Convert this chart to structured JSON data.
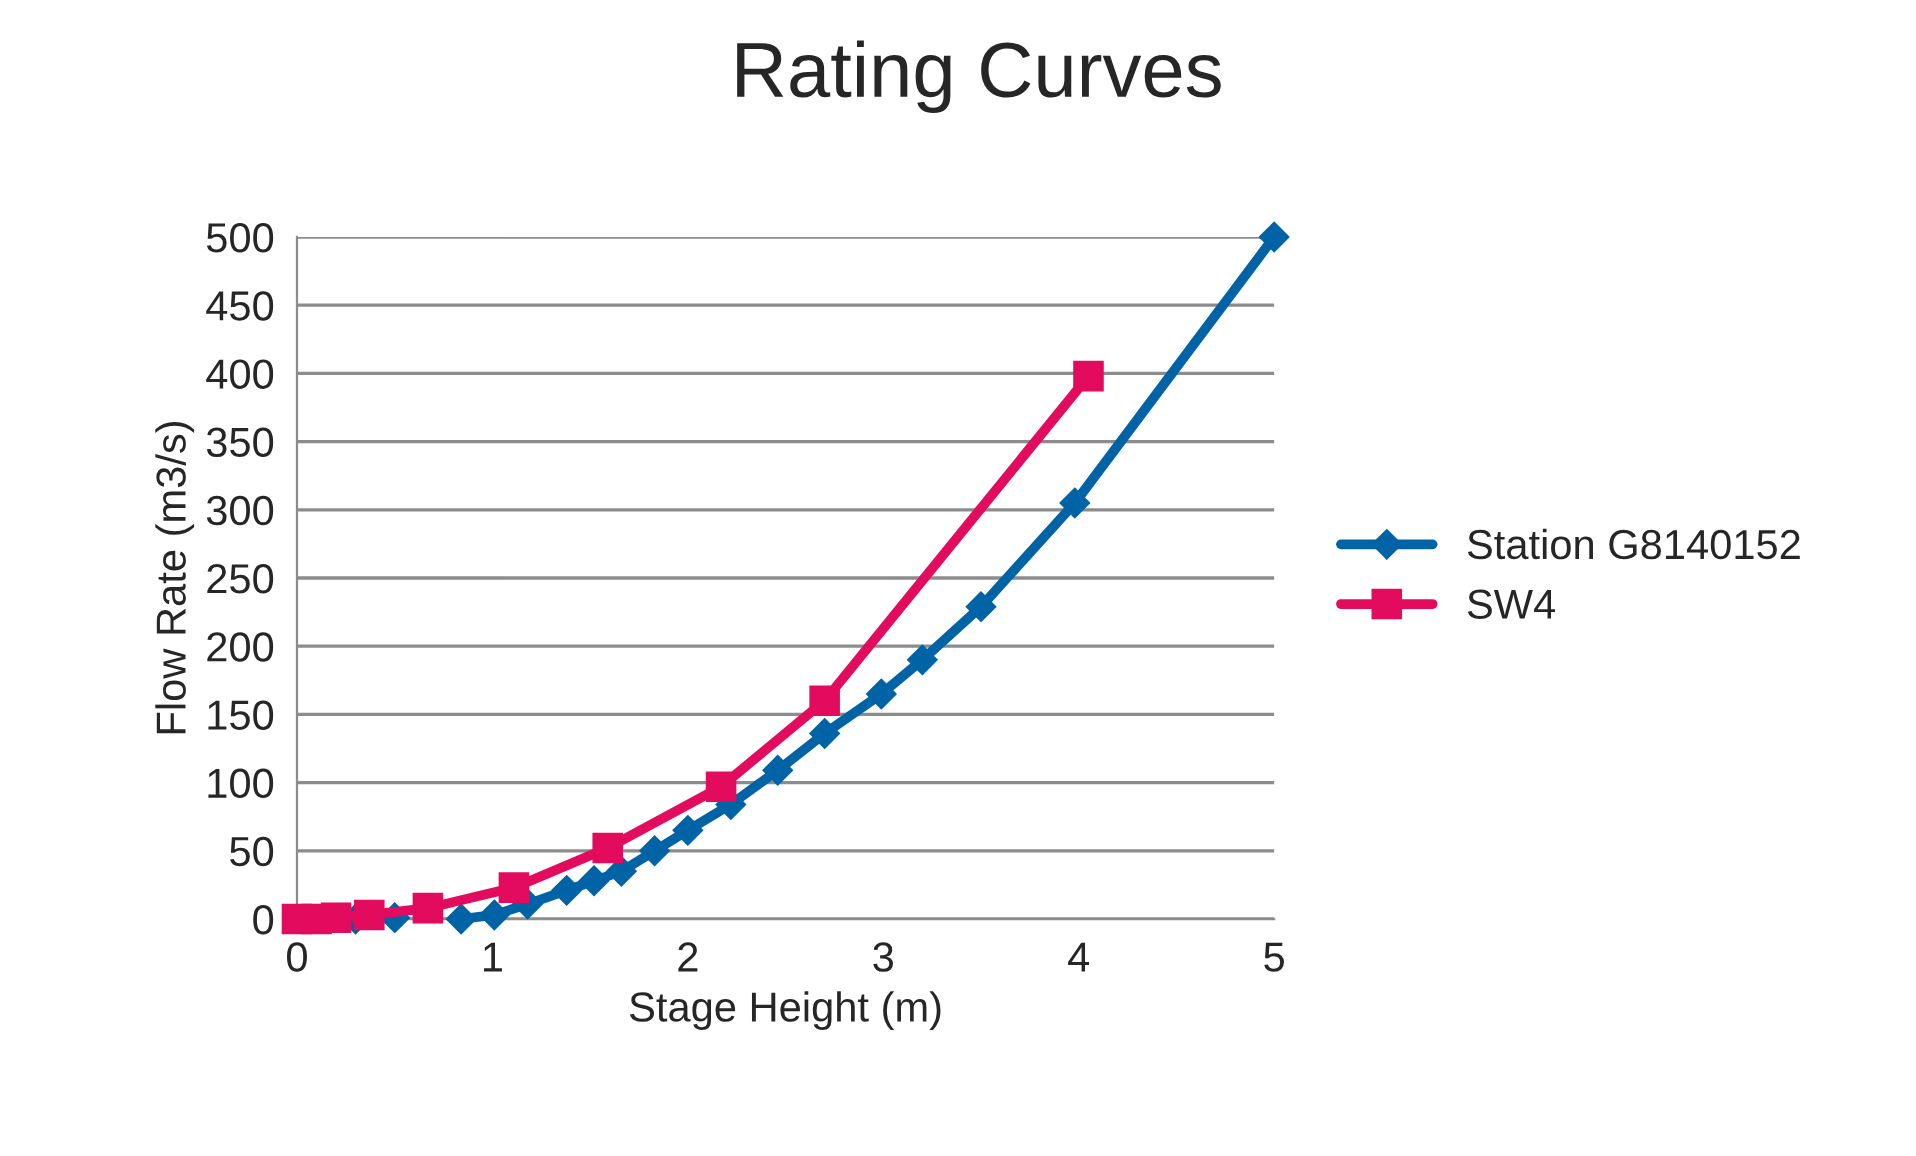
{
  "chart_data": {
    "type": "line",
    "title": "Rating Curves",
    "xlabel": "Stage Height (m)",
    "ylabel": "Flow Rate (m3/s)",
    "xlim": [
      0,
      5
    ],
    "xticks": [
      0,
      1,
      2,
      3,
      4,
      5
    ],
    "ylim": [
      0,
      500
    ],
    "yticks": [
      0,
      50,
      100,
      150,
      200,
      250,
      300,
      350,
      400,
      450,
      500
    ],
    "grid": "y",
    "legend": "right",
    "line_style": "solid",
    "series": [
      {
        "name": "Station G8140152",
        "color": "#0063a6",
        "marker": "diamond",
        "x": [
          0.3,
          0.5,
          0.67,
          0.84,
          1.01,
          1.18,
          1.38,
          1.52,
          1.66,
          1.83,
          2.0,
          2.22,
          2.46,
          2.7,
          2.99,
          3.2,
          3.5,
          3.98,
          5.0
        ],
        "values": [
          0,
          1,
          null,
          0,
          3,
          11,
          21,
          28,
          35,
          50,
          65,
          84,
          109,
          136,
          165,
          190,
          229,
          305,
          500
        ]
      },
      {
        "name": "SW4",
        "color": "#e30b5d",
        "marker": "square",
        "x": [
          0,
          0.1,
          0.2,
          0.37,
          0.67,
          1.11,
          1.59,
          2.17,
          2.7,
          4.05
        ],
        "values": [
          0,
          0,
          1,
          3,
          8,
          23,
          52,
          97,
          160,
          398
        ]
      }
    ]
  }
}
